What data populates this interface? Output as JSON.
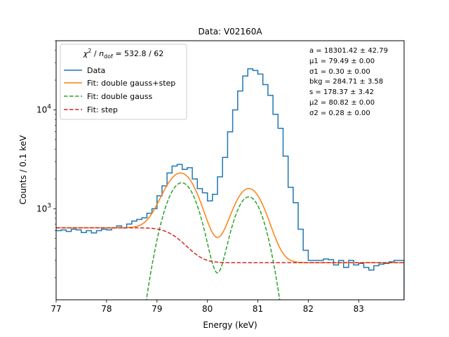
{
  "chart_data": {
    "type": "line",
    "title": "Data: V02160A",
    "xlabel": "Energy (keV)",
    "ylabel": "Counts / 0.1 keV",
    "yscale": "log",
    "xlim": [
      77.0,
      83.9
    ],
    "ylim": [
      120,
      50000
    ],
    "xticks": [
      77,
      78,
      79,
      80,
      81,
      82,
      83
    ],
    "yticks": [
      {
        "value": 1000,
        "base": "10",
        "exp": "3"
      },
      {
        "value": 10000,
        "base": "10",
        "exp": "4"
      }
    ],
    "grid": false,
    "legend": {
      "placement": "upper-left",
      "title": {
        "chi_sym": "χ",
        "chi_sup": "2",
        "sep": " / ",
        "n_sym": "n",
        "n_sub": "dof",
        "value": " = 532.8 / 62"
      },
      "entries": [
        {
          "label": "Data",
          "color": "#1f77b4",
          "dash": false
        },
        {
          "label": "Fit: double gauss+step",
          "color": "#ff7f0e",
          "dash": false
        },
        {
          "label": "Fit: double gauss",
          "color": "#2ca02c",
          "dash": true
        },
        {
          "label": "Fit: step",
          "color": "#d62728",
          "dash": true
        }
      ]
    },
    "annotations": [
      "a = 18301.42 ± 42.79",
      "μ1 = 79.49 ± 0.00",
      "σ1 = 0.30 ± 0.00",
      "bkg = 284.71 ± 3.58",
      "s = 178.37 ± 3.42",
      "μ2 = 80.82 ± 0.00",
      "σ2 = 0.28 ± 0.00"
    ],
    "fit_params": {
      "a": 18301.42,
      "mu1": 79.49,
      "sigma1": 0.3,
      "bkg": 284.71,
      "s": 178.37,
      "mu2": 80.82,
      "sigma2": 0.28
    },
    "series": [
      {
        "name": "Data",
        "style": "step",
        "color": "#1f77b4",
        "x": [
          77.0,
          77.1,
          77.2,
          77.3,
          77.4,
          77.5,
          77.6,
          77.7,
          77.8,
          77.9,
          78.0,
          78.1,
          78.2,
          78.3,
          78.4,
          78.5,
          78.6,
          78.7,
          78.8,
          78.9,
          79.0,
          79.1,
          79.2,
          79.3,
          79.4,
          79.5,
          79.6,
          79.7,
          79.8,
          79.9,
          80.0,
          80.1,
          80.2,
          80.3,
          80.4,
          80.5,
          80.6,
          80.7,
          80.8,
          80.9,
          81.0,
          81.1,
          81.2,
          81.3,
          81.4,
          81.5,
          81.6,
          81.7,
          81.8,
          81.9,
          82.0,
          82.1,
          82.2,
          82.3,
          82.4,
          82.5,
          82.6,
          82.7,
          82.8,
          82.9,
          83.0,
          83.1,
          83.2,
          83.3,
          83.4,
          83.5,
          83.6,
          83.7,
          83.8
        ],
        "y": [
          600,
          610,
          590,
          620,
          610,
          575,
          600,
          570,
          600,
          620,
          610,
          640,
          670,
          640,
          700,
          750,
          780,
          810,
          900,
          1000,
          1350,
          1700,
          2300,
          2700,
          2800,
          2500,
          2600,
          2000,
          1600,
          1450,
          1200,
          1400,
          2100,
          3300,
          6000,
          10000,
          15500,
          22000,
          26000,
          25000,
          23000,
          18000,
          14000,
          9000,
          6500,
          3400,
          1650,
          1150,
          620,
          380,
          300,
          300,
          300,
          310,
          305,
          270,
          300,
          255,
          300,
          270,
          280,
          255,
          240,
          265,
          275,
          280,
          290,
          300,
          300
        ]
      },
      {
        "name": "Fit: double gauss+step",
        "style": "line",
        "color": "#ff7f0e",
        "x_range": [
          77.0,
          83.9
        ]
      },
      {
        "name": "Fit: double gauss",
        "style": "dashed",
        "color": "#2ca02c",
        "x_range": [
          77.0,
          83.9
        ]
      },
      {
        "name": "Fit: step",
        "style": "dashed",
        "color": "#d62728",
        "x_range": [
          77.0,
          83.9
        ]
      }
    ]
  }
}
